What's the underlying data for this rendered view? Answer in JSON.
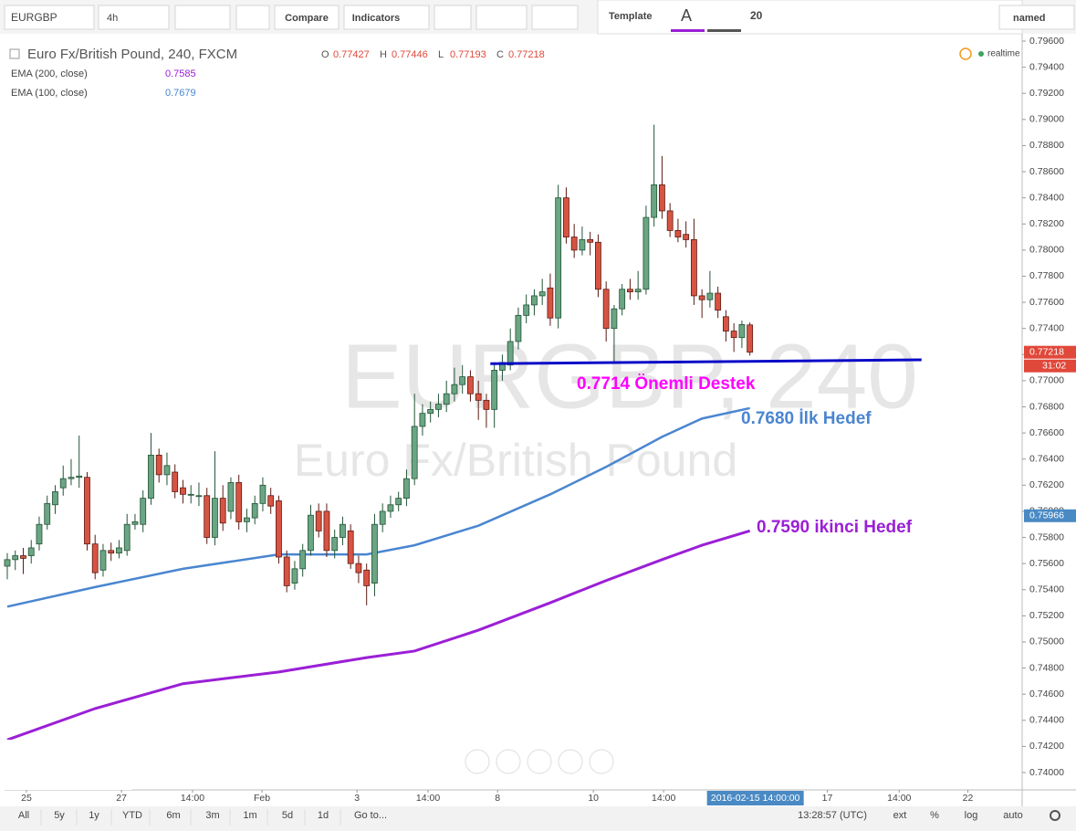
{
  "toolbar": {
    "symbol": "EURGBP",
    "interval": "4h",
    "compare": "Compare",
    "indicators": "Indicators",
    "template": "Template",
    "text_tool": "A",
    "font_size": "20",
    "layout_name": "named"
  },
  "legend": {
    "title": "Euro Fx/British Pound, 240, FXCM",
    "ohlc": [
      {
        "key": "O",
        "value": "0.77427"
      },
      {
        "key": "H",
        "value": "0.77446"
      },
      {
        "key": "L",
        "value": "0.77193"
      },
      {
        "key": "C",
        "value": "0.77218"
      }
    ],
    "indicator_values": [
      "0.7585",
      "0.7679"
    ],
    "status": "realtime"
  },
  "watermark": {
    "symbol": "EURGBP, 240",
    "description": "Euro Fx/British Pound"
  },
  "chart_data": {
    "type": "candlestick",
    "up_color": "#6ba583",
    "down_color": "#d75442",
    "grid": false,
    "xlim": [
      -0.34,
      127.1
    ],
    "xticks": [
      {
        "value": 2.4,
        "label": "25"
      },
      {
        "value": 14.3,
        "label": "27"
      },
      {
        "value": 23.2,
        "label": "14:00"
      },
      {
        "value": 31.9,
        "label": "Feb"
      },
      {
        "value": 43.8,
        "label": "3"
      },
      {
        "value": 52.7,
        "label": "14:00"
      },
      {
        "value": 61.4,
        "label": "8"
      },
      {
        "value": 73.4,
        "label": "10"
      },
      {
        "value": 82.2,
        "label": "14:00"
      },
      {
        "value": 102.7,
        "label": "17"
      },
      {
        "value": 111.7,
        "label": "14:00"
      },
      {
        "value": 120.3,
        "label": "22"
      }
    ],
    "crosshair_time": {
      "value": 93,
      "label": "2016-02-15 14:00:00"
    },
    "ylim": [
      0.73867,
      0.79656
    ],
    "yticks": [
      {
        "value": 0.796,
        "label": "0.79600"
      },
      {
        "value": 0.794,
        "label": "0.79400"
      },
      {
        "value": 0.792,
        "label": "0.79200"
      },
      {
        "value": 0.79,
        "label": "0.79000"
      },
      {
        "value": 0.788,
        "label": "0.78800"
      },
      {
        "value": 0.786,
        "label": "0.78600"
      },
      {
        "value": 0.784,
        "label": "0.78400"
      },
      {
        "value": 0.782,
        "label": "0.78200"
      },
      {
        "value": 0.78,
        "label": "0.78000"
      },
      {
        "value": 0.778,
        "label": "0.77800"
      },
      {
        "value": 0.776,
        "label": "0.77600"
      },
      {
        "value": 0.774,
        "label": "0.77400"
      },
      {
        "value": 0.772,
        "label": "0.77200"
      },
      {
        "value": 0.77,
        "label": "0.77000"
      },
      {
        "value": 0.768,
        "label": "0.76800"
      },
      {
        "value": 0.766,
        "label": "0.76600"
      },
      {
        "value": 0.764,
        "label": "0.76400"
      },
      {
        "value": 0.762,
        "label": "0.76200"
      },
      {
        "value": 0.76,
        "label": "0.76000"
      },
      {
        "value": 0.758,
        "label": "0.75800"
      },
      {
        "value": 0.756,
        "label": "0.75600"
      },
      {
        "value": 0.754,
        "label": "0.75400"
      },
      {
        "value": 0.752,
        "label": "0.75200"
      },
      {
        "value": 0.75,
        "label": "0.75000"
      },
      {
        "value": 0.748,
        "label": "0.74800"
      },
      {
        "value": 0.746,
        "label": "0.74600"
      },
      {
        "value": 0.744,
        "label": "0.74400"
      },
      {
        "value": 0.742,
        "label": "0.74200"
      },
      {
        "value": 0.74,
        "label": "0.74000"
      }
    ],
    "price_labels": [
      {
        "value": 0.77218,
        "label": "0.77218",
        "color": "#e0483a"
      },
      {
        "value": 0.75966,
        "label": "0.75966",
        "color": "#4a8ac4"
      }
    ],
    "countdown": "31:02",
    "ohlc": [
      [
        0.7558,
        0.7568,
        0.7548,
        0.7563
      ],
      [
        0.7563,
        0.757,
        0.7555,
        0.7566
      ],
      [
        0.7566,
        0.7572,
        0.7552,
        0.7564
      ],
      [
        0.7566,
        0.7578,
        0.756,
        0.7572
      ],
      [
        0.7575,
        0.7596,
        0.757,
        0.759
      ],
      [
        0.759,
        0.7612,
        0.7586,
        0.7606
      ],
      [
        0.7605,
        0.762,
        0.7598,
        0.7615
      ],
      [
        0.7618,
        0.7635,
        0.7612,
        0.7625
      ],
      [
        0.7625,
        0.764,
        0.762,
        0.7626
      ],
      [
        0.7626,
        0.7658,
        0.7618,
        0.7627
      ],
      [
        0.7626,
        0.763,
        0.757,
        0.7575
      ],
      [
        0.7575,
        0.7582,
        0.7548,
        0.7553
      ],
      [
        0.7555,
        0.7575,
        0.755,
        0.757
      ],
      [
        0.757,
        0.7576,
        0.7562,
        0.7568
      ],
      [
        0.7568,
        0.7578,
        0.7564,
        0.7572
      ],
      [
        0.757,
        0.7598,
        0.7566,
        0.759
      ],
      [
        0.759,
        0.7598,
        0.7586,
        0.7592
      ],
      [
        0.759,
        0.7616,
        0.7584,
        0.761
      ],
      [
        0.761,
        0.766,
        0.7605,
        0.7643
      ],
      [
        0.7643,
        0.7648,
        0.7622,
        0.7628
      ],
      [
        0.7628,
        0.7645,
        0.762,
        0.7635
      ],
      [
        0.763,
        0.7636,
        0.761,
        0.7615
      ],
      [
        0.7618,
        0.7624,
        0.7606,
        0.7613
      ],
      [
        0.7613,
        0.762,
        0.7606,
        0.7613
      ],
      [
        0.7612,
        0.7622,
        0.7604,
        0.7612
      ],
      [
        0.7612,
        0.7618,
        0.7575,
        0.758
      ],
      [
        0.758,
        0.7646,
        0.7574,
        0.761
      ],
      [
        0.761,
        0.762,
        0.7585,
        0.7591
      ],
      [
        0.76,
        0.7626,
        0.7594,
        0.7622
      ],
      [
        0.7622,
        0.7628,
        0.7586,
        0.7592
      ],
      [
        0.7592,
        0.7602,
        0.7584,
        0.7595
      ],
      [
        0.7595,
        0.7612,
        0.759,
        0.7606
      ],
      [
        0.7606,
        0.7626,
        0.76,
        0.762
      ],
      [
        0.7612,
        0.7618,
        0.7598,
        0.7604
      ],
      [
        0.7608,
        0.7612,
        0.756,
        0.7565
      ],
      [
        0.7565,
        0.757,
        0.7538,
        0.7543
      ],
      [
        0.7545,
        0.7562,
        0.754,
        0.7556
      ],
      [
        0.7556,
        0.7575,
        0.755,
        0.757
      ],
      [
        0.757,
        0.7605,
        0.7566,
        0.7597
      ],
      [
        0.76,
        0.7606,
        0.758,
        0.7585
      ],
      [
        0.76,
        0.7606,
        0.7565,
        0.757
      ],
      [
        0.757,
        0.7586,
        0.7564,
        0.758
      ],
      [
        0.758,
        0.7596,
        0.7574,
        0.759
      ],
      [
        0.7585,
        0.759,
        0.7556,
        0.756
      ],
      [
        0.756,
        0.7566,
        0.7545,
        0.7553
      ],
      [
        0.7555,
        0.756,
        0.7528,
        0.7543
      ],
      [
        0.7545,
        0.7598,
        0.7535,
        0.759
      ],
      [
        0.759,
        0.7606,
        0.7584,
        0.76
      ],
      [
        0.76,
        0.7612,
        0.7595,
        0.7605
      ],
      [
        0.7605,
        0.7615,
        0.76,
        0.761
      ],
      [
        0.761,
        0.7632,
        0.7604,
        0.7625
      ],
      [
        0.7625,
        0.769,
        0.762,
        0.7665
      ],
      [
        0.7665,
        0.7682,
        0.7658,
        0.7675
      ],
      [
        0.7675,
        0.7684,
        0.7668,
        0.7678
      ],
      [
        0.7678,
        0.769,
        0.7672,
        0.7682
      ],
      [
        0.7682,
        0.77,
        0.7676,
        0.769
      ],
      [
        0.769,
        0.771,
        0.7684,
        0.7697
      ],
      [
        0.7697,
        0.7712,
        0.769,
        0.7703
      ],
      [
        0.7703,
        0.7708,
        0.7684,
        0.769
      ],
      [
        0.769,
        0.77,
        0.767,
        0.7685
      ],
      [
        0.7685,
        0.769,
        0.7664,
        0.7678
      ],
      [
        0.7678,
        0.7714,
        0.7664,
        0.7708
      ],
      [
        0.7708,
        0.772,
        0.77,
        0.7714
      ],
      [
        0.7712,
        0.774,
        0.7708,
        0.773
      ],
      [
        0.773,
        0.7756,
        0.7724,
        0.775
      ],
      [
        0.775,
        0.7766,
        0.7744,
        0.7758
      ],
      [
        0.7758,
        0.777,
        0.775,
        0.7765
      ],
      [
        0.7765,
        0.7778,
        0.7758,
        0.7768
      ],
      [
        0.7771,
        0.7782,
        0.7742,
        0.7748
      ],
      [
        0.7748,
        0.785,
        0.774,
        0.784
      ],
      [
        0.784,
        0.7848,
        0.7805,
        0.781
      ],
      [
        0.781,
        0.782,
        0.7794,
        0.78
      ],
      [
        0.78,
        0.7818,
        0.7796,
        0.7808
      ],
      [
        0.7808,
        0.7814,
        0.7796,
        0.7806
      ],
      [
        0.7806,
        0.7812,
        0.7764,
        0.777
      ],
      [
        0.777,
        0.7776,
        0.773,
        0.774
      ],
      [
        0.774,
        0.7758,
        0.7714,
        0.7755
      ],
      [
        0.7755,
        0.7774,
        0.775,
        0.777
      ],
      [
        0.777,
        0.7778,
        0.7762,
        0.7768
      ],
      [
        0.7768,
        0.7784,
        0.7762,
        0.777
      ],
      [
        0.777,
        0.7834,
        0.7766,
        0.7825
      ],
      [
        0.7825,
        0.7896,
        0.7818,
        0.785
      ],
      [
        0.785,
        0.7872,
        0.7824,
        0.783
      ],
      [
        0.783,
        0.7836,
        0.781,
        0.7815
      ],
      [
        0.7815,
        0.7824,
        0.7806,
        0.781
      ],
      [
        0.7812,
        0.7822,
        0.7802,
        0.7808
      ],
      [
        0.7808,
        0.7824,
        0.7758,
        0.7765
      ],
      [
        0.7765,
        0.777,
        0.7748,
        0.7762
      ],
      [
        0.7762,
        0.7784,
        0.7756,
        0.7767
      ],
      [
        0.7767,
        0.7772,
        0.7748,
        0.7754
      ],
      [
        0.7749,
        0.7754,
        0.773,
        0.7738
      ],
      [
        0.7738,
        0.7744,
        0.7722,
        0.7733
      ],
      [
        0.7733,
        0.7746,
        0.7725,
        0.7743
      ],
      [
        0.77427,
        0.77446,
        0.77193,
        0.77218
      ]
    ],
    "series": [
      {
        "name": "EMA (200, close)",
        "color": "#9b1fd6",
        "x": [
          0,
          11,
          22,
          34,
          45,
          51,
          59,
          68,
          75,
          82,
          87,
          93
        ],
        "values": [
          0.7425,
          0.7449,
          0.7468,
          0.7477,
          0.7488,
          0.7493,
          0.7509,
          0.753,
          0.7547,
          0.7563,
          0.7574,
          0.7585
        ]
      },
      {
        "name": "EMA (100, close)",
        "color": "#4a86d0",
        "x": [
          0,
          11,
          22,
          34,
          45,
          51,
          59,
          68,
          75,
          82,
          87,
          93
        ],
        "values": [
          0.7527,
          0.7542,
          0.7556,
          0.7567,
          0.7567,
          0.7574,
          0.7589,
          0.7613,
          0.7634,
          0.7657,
          0.7671,
          0.7679
        ]
      }
    ],
    "trendline": {
      "color": "#0a0ac8",
      "x": [
        60.5,
        114.5
      ],
      "values": [
        0.7713,
        0.7716
      ]
    },
    "annotations": [
      {
        "text": "0.7714 Önemli Destek",
        "color": "#ff00ff"
      },
      {
        "text": "0.7680 İlk Hedef",
        "color": "#4a86d0"
      },
      {
        "text": "0.7590 ikinci Hedef",
        "color": "#9b1fd6"
      }
    ]
  },
  "bottom_bar": {
    "ranges": [
      "All",
      "5y",
      "1y",
      "YTD",
      "6m",
      "3m",
      "1m",
      "5d",
      "1d"
    ],
    "goto": "Go to...",
    "clock": "13:28:57 (UTC)",
    "options": [
      "ext",
      "%",
      "log",
      "auto"
    ]
  }
}
